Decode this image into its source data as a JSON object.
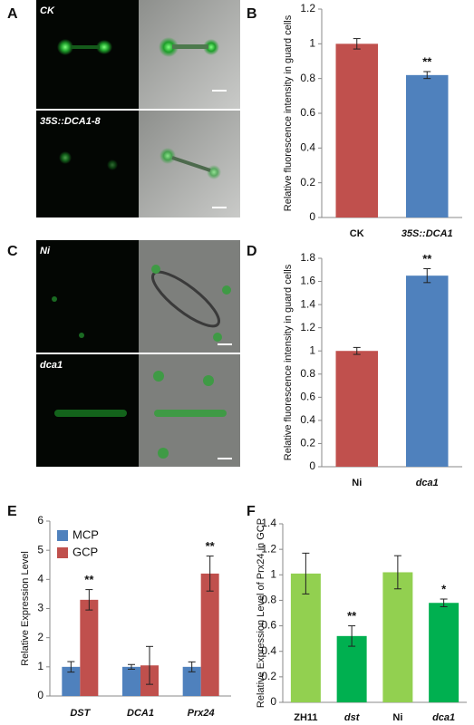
{
  "panel_labels": [
    "A",
    "B",
    "C",
    "D",
    "E",
    "F"
  ],
  "image_labels": [
    "CK",
    "35S::DCA1-8",
    "Ni",
    "dca1"
  ],
  "chart_data": [
    {
      "type": "bar",
      "ylabel": "Relative fluorescence intensity in guard cells",
      "categories": [
        "CK",
        "35S::DCA1"
      ],
      "italic": [
        false,
        true
      ],
      "values": [
        1.0,
        0.82
      ],
      "errors": [
        0.03,
        0.02
      ],
      "colors": [
        "#c0504d",
        "#4f81bd"
      ],
      "annotations": [
        null,
        "**"
      ],
      "ylim": [
        0,
        1.2
      ],
      "yticks": [
        0,
        0.2,
        0.4,
        0.6,
        0.8,
        1,
        1.2
      ]
    },
    {
      "type": "bar",
      "ylabel": "Relative fluorescence intensity in guard cells",
      "categories": [
        "Ni",
        "dca1"
      ],
      "italic": [
        false,
        true
      ],
      "values": [
        1.0,
        1.65
      ],
      "errors": [
        0.03,
        0.06
      ],
      "colors": [
        "#c0504d",
        "#4f81bd"
      ],
      "annotations": [
        null,
        "**"
      ],
      "ylim": [
        0,
        1.8
      ],
      "yticks": [
        0,
        0.2,
        0.4,
        0.6,
        0.8,
        1,
        1.2,
        1.4,
        1.6,
        1.8
      ]
    },
    {
      "type": "grouped-bar",
      "ylabel": "Relative Expression Level",
      "categories": [
        "DST",
        "DCA1",
        "Prx24"
      ],
      "italic": [
        true,
        true,
        true
      ],
      "series": [
        {
          "name": "MCP",
          "color": "#4f81bd",
          "values": [
            1.0,
            1.0,
            1.0
          ],
          "errors": [
            0.18,
            0.08,
            0.17
          ],
          "annotations": [
            null,
            null,
            null
          ]
        },
        {
          "name": "GCP",
          "color": "#c0504d",
          "values": [
            3.3,
            1.05,
            4.2
          ],
          "errors": [
            0.35,
            0.65,
            0.6
          ],
          "annotations": [
            "**",
            null,
            "**"
          ]
        }
      ],
      "ylim": [
        0,
        6
      ],
      "yticks": [
        0,
        1,
        2,
        3,
        4,
        5,
        6
      ]
    },
    {
      "type": "bar",
      "ylabel": "Relative Expression Level of Prx24 in GCP",
      "categories": [
        "ZH11",
        "dst",
        "Ni",
        "dca1"
      ],
      "italic": [
        false,
        true,
        false,
        true
      ],
      "values": [
        1.01,
        0.52,
        1.02,
        0.78
      ],
      "errors": [
        0.16,
        0.08,
        0.13,
        0.03
      ],
      "colors": [
        "#92d050",
        "#00b050",
        "#92d050",
        "#00b050"
      ],
      "annotations": [
        null,
        "**",
        null,
        "*"
      ],
      "ylim": [
        0,
        1.4
      ],
      "yticks": [
        0,
        0.2,
        0.4,
        0.6,
        0.8,
        1,
        1.2,
        1.4
      ]
    }
  ]
}
